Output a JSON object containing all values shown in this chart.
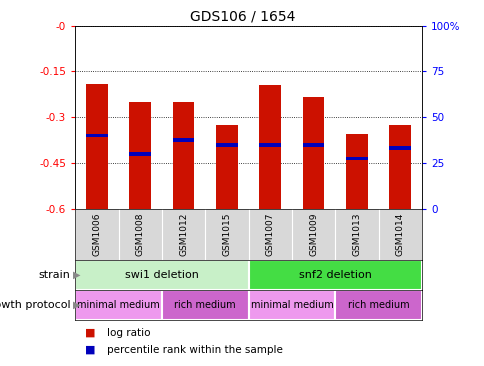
{
  "title": "GDS106 / 1654",
  "samples": [
    "GSM1006",
    "GSM1008",
    "GSM1012",
    "GSM1015",
    "GSM1007",
    "GSM1009",
    "GSM1013",
    "GSM1014"
  ],
  "log_ratios": [
    -0.19,
    -0.25,
    -0.25,
    -0.325,
    -0.195,
    -0.235,
    -0.355,
    -0.325
  ],
  "percentile_ranks": [
    -0.36,
    -0.42,
    -0.375,
    -0.39,
    -0.39,
    -0.39,
    -0.435,
    -0.4
  ],
  "ylim_left": [
    -0.6,
    0.0
  ],
  "ylim_right": [
    0,
    100
  ],
  "yticks_left": [
    0.0,
    -0.15,
    -0.3,
    -0.45,
    -0.6
  ],
  "yticks_right": [
    100,
    75,
    50,
    25,
    0
  ],
  "ytick_labels_left": [
    "-0",
    "-0.15",
    "-0.3",
    "-0.45",
    "-0.6"
  ],
  "ytick_labels_right": [
    "100%",
    "75",
    "50",
    "25",
    "0"
  ],
  "strain_groups": [
    {
      "label": "swi1 deletion",
      "start": 0,
      "end": 4,
      "color": "#c8f0c8"
    },
    {
      "label": "snf2 deletion",
      "start": 4,
      "end": 8,
      "color": "#44dd44"
    }
  ],
  "protocol_groups": [
    {
      "label": "minimal medium",
      "start": 0,
      "end": 2,
      "color": "#e890e8"
    },
    {
      "label": "rich medium",
      "start": 2,
      "end": 4,
      "color": "#dd88dd"
    },
    {
      "label": "minimal medium",
      "start": 4,
      "end": 6,
      "color": "#e890e8"
    },
    {
      "label": "rich medium",
      "start": 6,
      "end": 8,
      "color": "#dd88dd"
    }
  ],
  "bar_color": "#cc1100",
  "dot_color": "#0000bb",
  "bar_width": 0.5,
  "background_color": "#ffffff",
  "strain_label": "strain",
  "protocol_label": "growth protocol",
  "legend_items": [
    {
      "color": "#cc1100",
      "label": "log ratio"
    },
    {
      "color": "#0000bb",
      "label": "percentile rank within the sample"
    }
  ]
}
